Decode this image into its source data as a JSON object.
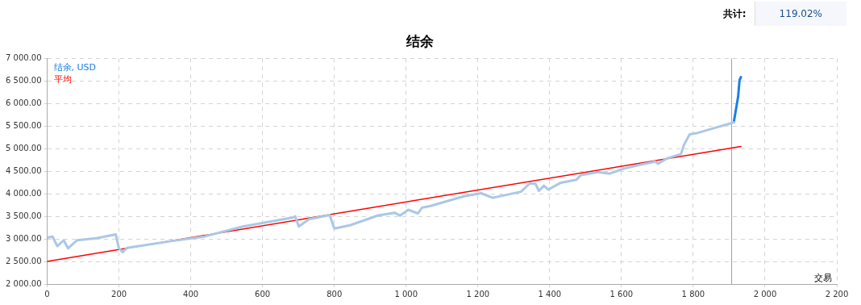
{
  "chart_data": {
    "type": "line",
    "title": "结余",
    "xlabel": "交易",
    "annotations": [
      "共计:",
      "119.02%"
    ],
    "xlim": [
      0,
      2200
    ],
    "xticks": [
      0,
      200,
      400,
      600,
      800,
      {
        "value": 1000,
        "label": "1 000"
      },
      {
        "value": 1200,
        "label": "1 200"
      },
      {
        "value": 1400,
        "label": "1 400"
      },
      {
        "value": 1600,
        "label": "1 600"
      },
      {
        "value": 1800,
        "label": "1 800"
      },
      {
        "value": 2000,
        "label": "2 000"
      },
      {
        "value": 2200,
        "label": "2 200"
      }
    ],
    "ylim": [
      2000,
      7000
    ],
    "yticks": [
      {
        "value": 2000,
        "label": "2 000.00"
      },
      {
        "value": 2500,
        "label": "2 500.00"
      },
      {
        "value": 3000,
        "label": "3 000.00"
      },
      {
        "value": 3500,
        "label": "3 500.00"
      },
      {
        "value": 4000,
        "label": "4 000.00"
      },
      {
        "value": 4500,
        "label": "4 500.00"
      },
      {
        "value": 5000,
        "label": "5 000.00"
      },
      {
        "value": 5500,
        "label": "5 500.00"
      },
      {
        "value": 6000,
        "label": "6 000.00"
      },
      {
        "value": 6500,
        "label": "6 500.00"
      },
      {
        "value": 7000,
        "label": "7 000.00"
      }
    ],
    "grid": true,
    "legend": "top left",
    "marker": "none",
    "line_style": "solid",
    "ref_lines": [
      {
        "axis": "x",
        "value": 1907,
        "label": null,
        "color": "#a0a0a0"
      }
    ],
    "series": [
      {
        "color": "#aac8e6",
        "x": [
          0,
          15,
          28,
          46,
          58,
          83,
          137,
          191,
          200,
          210,
          222,
          345,
          437,
          545,
          683,
          691,
          701,
          729,
          787,
          800,
          845,
          922,
          968,
          983,
          1006,
          1033,
          1045,
          1068,
          1161,
          1209,
          1241,
          1320,
          1344,
          1360,
          1370,
          1384,
          1396,
          1431,
          1475,
          1487,
          1535,
          1567,
          1607,
          1654,
          1694,
          1702,
          1726,
          1766,
          1774,
          1790,
          1813,
          1861,
          1905,
          1913
        ],
        "values": [
          3030,
          3050,
          2840,
          2970,
          2790,
          2970,
          3015,
          3100,
          2790,
          2705,
          2800,
          2950,
          3050,
          3275,
          3470,
          3500,
          3275,
          3435,
          3530,
          3230,
          3305,
          3520,
          3580,
          3515,
          3645,
          3565,
          3695,
          3730,
          3945,
          4012,
          3911,
          4045,
          4226,
          4226,
          4065,
          4180,
          4093,
          4246,
          4313,
          4413,
          4480,
          4447,
          4560,
          4647,
          4714,
          4667,
          4781,
          4881,
          5082,
          5316,
          5350,
          5463,
          5564,
          5584
        ]
      },
      {
        "name": "结余, USD",
        "color": "#1a7fe8",
        "x": [
          1913,
          1925,
          1929,
          1933
        ],
        "values": [
          5584,
          6152,
          6520,
          6587
        ]
      },
      {
        "name": "平均",
        "color": "#ff0000",
        "x": [
          0,
          1933
        ],
        "values": [
          2500,
          5050
        ]
      }
    ]
  }
}
